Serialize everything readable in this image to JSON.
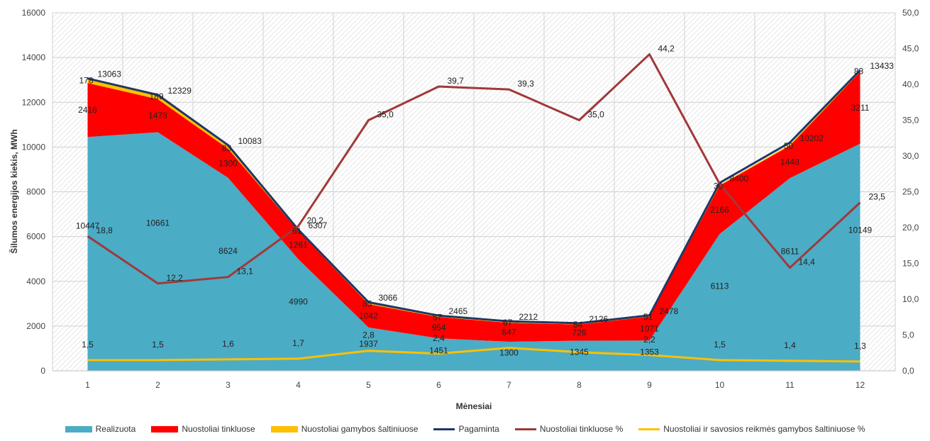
{
  "chart_data": {
    "type": "area",
    "xlabel": "Mėnesiai",
    "ylabel": "Šilumos energijos kiekis, MWh",
    "categories": [
      "1",
      "2",
      "3",
      "4",
      "5",
      "6",
      "7",
      "8",
      "9",
      "10",
      "11",
      "12"
    ],
    "ylim": [
      0,
      16000
    ],
    "yticks": [
      "0",
      "2000",
      "4000",
      "6000",
      "8000",
      "10000",
      "12000",
      "14000",
      "16000"
    ],
    "y2lim": [
      0,
      50
    ],
    "y2ticks": [
      "0,0",
      "5,0",
      "10,0",
      "15,0",
      "20,0",
      "25,0",
      "30,0",
      "35,0",
      "40,0",
      "45,0",
      "50,0"
    ],
    "grid": true,
    "legend_position": "bottom",
    "series": [
      {
        "name": "Realizuota",
        "kind": "stacked-area",
        "color": "#4bacc6",
        "values": [
          10447,
          10661,
          8624,
          4990,
          1937,
          1451,
          1300,
          1345,
          1353,
          6113,
          8611,
          10149
        ],
        "labels": [
          "10447",
          "10661",
          "8624",
          "4990",
          "1937",
          "1451",
          "1300",
          "1345",
          "1353",
          "6113",
          "8611",
          "10149"
        ]
      },
      {
        "name": "Nuostoliai tinkluose",
        "kind": "stacked-area",
        "color": "#ff0000",
        "values": [
          2416,
          1478,
          1300,
          1261,
          1042,
          954,
          847,
          726,
          1071,
          2166,
          1448,
          3211
        ],
        "labels": [
          "2416",
          "1478",
          "1300",
          "1261",
          "1042",
          "954",
          "847",
          "726",
          "1071",
          "2166",
          "1448",
          "3211"
        ]
      },
      {
        "name": "Nuostoliai gamybos šaltiniuose",
        "kind": "stacked-area",
        "color": "#ffc000",
        "values": [
          178,
          189,
          83,
          61,
          85,
          57,
          67,
          54,
          51,
          30,
          50,
          83
        ],
        "labels": [
          "178",
          "189",
          "83",
          "61",
          "85",
          "57",
          "67",
          "54",
          "51",
          "30",
          "50",
          "83"
        ]
      },
      {
        "name": "Pagaminta",
        "kind": "line",
        "axis": "left",
        "color": "#1f3864",
        "values": [
          13063,
          12329,
          10083,
          6307,
          3066,
          2465,
          2212,
          2126,
          2478,
          8400,
          10202,
          13433
        ],
        "labels": [
          "13063",
          "12329",
          "10083",
          "6307",
          "3066",
          "2465",
          "2212",
          "2126",
          "2478",
          "8400",
          "10202",
          "13433"
        ]
      },
      {
        "name": "Nuostoliai tinkluose %",
        "kind": "line",
        "axis": "right",
        "color": "#a0393a",
        "values": [
          18.8,
          12.2,
          13.1,
          20.2,
          35.0,
          39.7,
          39.3,
          35.0,
          44.2,
          26.1,
          14.4,
          23.5
        ],
        "labels": [
          "18,8",
          "12,2",
          "13,1",
          "20,2",
          "35,0",
          "39,7",
          "39,3",
          "35,0",
          "44,2",
          "",
          "14,4",
          "23,5"
        ]
      },
      {
        "name": "Nuostoliai ir savosios reikmės gamybos šaltiniuose %",
        "kind": "line",
        "axis": "right",
        "color": "#ffc000",
        "values": [
          1.5,
          1.5,
          1.6,
          1.7,
          2.8,
          2.4,
          3.2,
          2.6,
          2.2,
          1.5,
          1.4,
          1.3
        ],
        "labels": [
          "1,5",
          "1,5",
          "1,6",
          "1,7",
          "2,8",
          "2,4",
          "",
          "",
          "2,2",
          "1,5",
          "1,4",
          "1,3"
        ]
      }
    ]
  }
}
